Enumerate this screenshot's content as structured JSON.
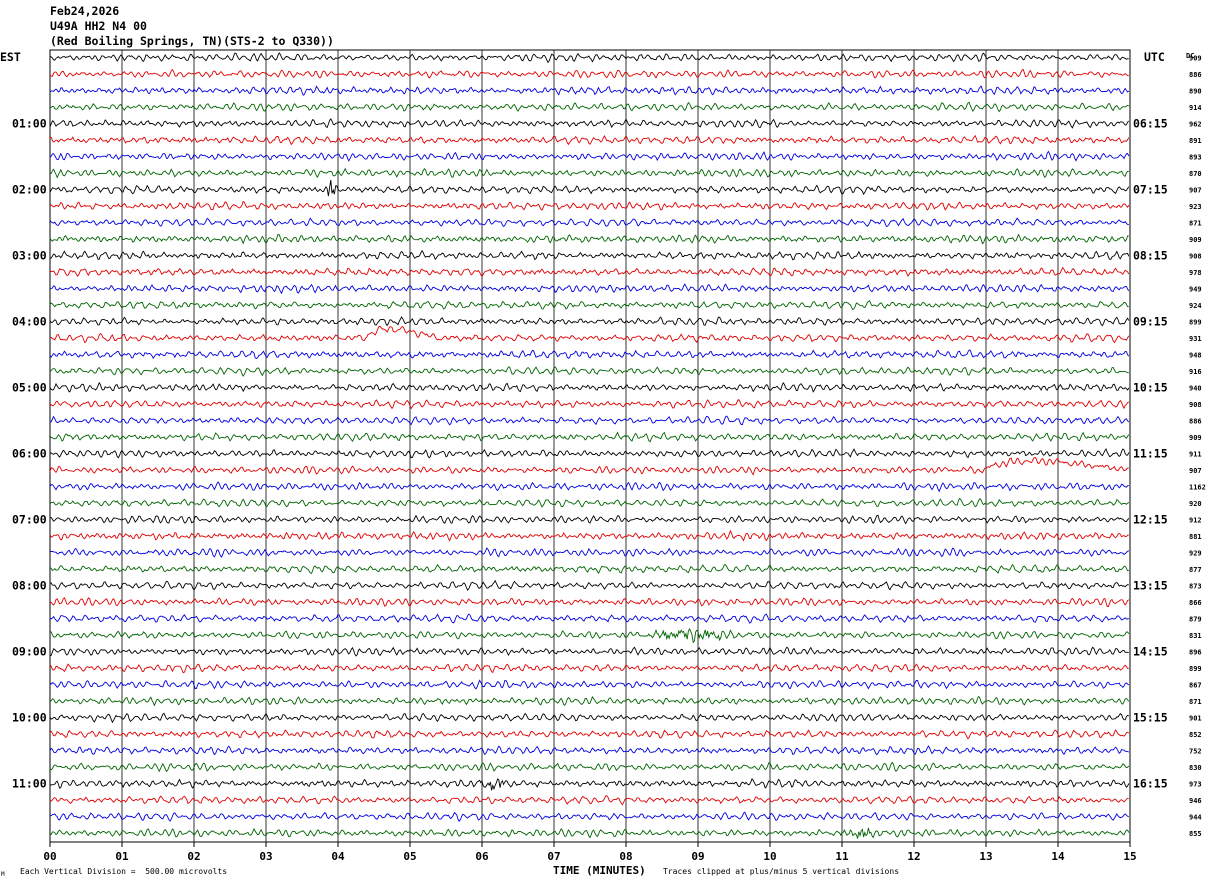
{
  "header": {
    "date": "Feb24,2026",
    "station": "U49A HH2 N4 00",
    "location": "(Red Boiling Springs, TN)(STS-2 to Q330))"
  },
  "axis_labels": {
    "left_timezone": "EST",
    "right_timezone": "UTC",
    "dc_label": "DC",
    "x_title": "TIME (MINUTES)"
  },
  "footer": {
    "vertical_division": "Each Vertical Division =  500.00 microvolts",
    "clip_note": "Traces clipped at plus/minus 5 vertical divisions",
    "corner_mark": "M"
  },
  "colors": {
    "trace_cycle": [
      "#000000",
      "#e00000",
      "#0000e0",
      "#006400"
    ],
    "grid": "#000000",
    "background": "#ffffff"
  },
  "chart_data": {
    "type": "line",
    "subtype": "helicorder",
    "x_ticks": [
      "00",
      "01",
      "02",
      "03",
      "04",
      "05",
      "06",
      "07",
      "08",
      "09",
      "10",
      "11",
      "12",
      "13",
      "14",
      "15"
    ],
    "xlim": [
      0,
      15
    ],
    "minutes_per_line": 15,
    "line_count": 48,
    "est_hour_labels": [
      "01:00",
      "02:00",
      "03:00",
      "04:00",
      "05:00",
      "06:00",
      "07:00",
      "08:00",
      "09:00",
      "10:00",
      "11:00"
    ],
    "utc_hour_labels": [
      "06:15",
      "07:15",
      "08:15",
      "09:15",
      "10:15",
      "11:15",
      "12:15",
      "13:15",
      "14:15",
      "15:15",
      "16:15"
    ],
    "dc_values": [
      "909",
      "886",
      "890",
      "914",
      "962",
      "891",
      "893",
      "870",
      "907",
      "923",
      "871",
      "909",
      "908",
      "978",
      "949",
      "924",
      "899",
      "931",
      "948",
      "916",
      "940",
      "908",
      "886",
      "909",
      "911",
      "907",
      "1162",
      "920",
      "912",
      "881",
      "929",
      "877",
      "873",
      "866",
      "879",
      "831",
      "896",
      "899",
      "867",
      "871",
      "901",
      "852",
      "752",
      "830",
      "973",
      "946",
      "944",
      "855"
    ],
    "events": [
      {
        "line": 25,
        "start_min": 13.0,
        "end_min": 15.0,
        "type": "long-period swell"
      },
      {
        "line": 17,
        "start_min": 4.4,
        "end_min": 5.4,
        "type": "long-period swell"
      },
      {
        "line": 35,
        "start_min": 8.3,
        "end_min": 9.6,
        "type": "high-frequency burst"
      },
      {
        "line": 44,
        "start_min": 5.9,
        "end_min": 6.4,
        "type": "high-frequency burst"
      },
      {
        "line": 47,
        "start_min": 10.9,
        "end_min": 11.6,
        "type": "high-frequency burst"
      },
      {
        "line": 8,
        "start_min": 3.85,
        "end_min": 4.0,
        "type": "spike"
      }
    ]
  }
}
